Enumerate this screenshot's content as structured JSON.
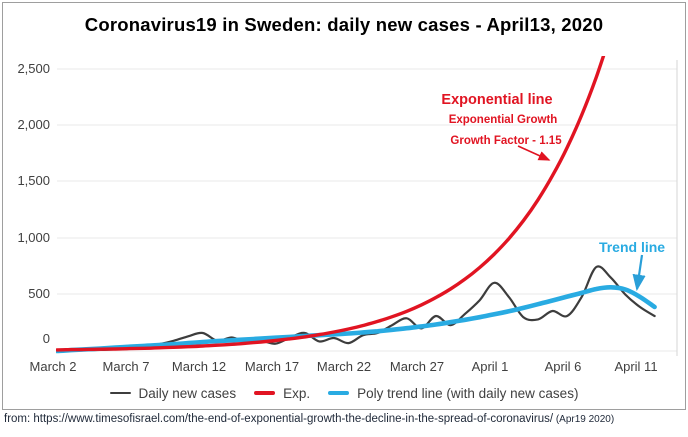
{
  "title": "Coronavirus19 in Sweden: daily new cases - April13, 2020",
  "annotations": {
    "exp_title": "Exponential line",
    "exp_sub1": "Exponential Growth",
    "exp_sub2": "Growth Factor - 1.15",
    "trend": "Trend line"
  },
  "source": {
    "text": "from: https://www.timesofisrael.com/the-end-of-exponential-growth-the-decline-in-the-spread-of-coronavirus/",
    "date": " (Apr19 2020)"
  },
  "colors": {
    "daily_line": "#3d3d3d",
    "exp_line": "#e11422",
    "trend_line": "#29abe2",
    "gridline": "#e8e8e8",
    "axis_text": "#404040",
    "box_border": "#9e9e9e"
  },
  "chart_data": {
    "type": "line",
    "title": "Coronavirus19 in Sweden: daily new cases - April13, 2020",
    "xlabel": "",
    "ylabel": "",
    "x_ticks": [
      "March 2",
      "March 7",
      "March 12",
      "March 17",
      "March 22",
      "March 27",
      "April 1",
      "April 6",
      "April 11"
    ],
    "x_unit": "days, one data point per day starting March 2 2020",
    "y_ticks": [
      "0",
      "500",
      "1,000",
      "1,500",
      "2,000",
      "2,500"
    ],
    "ylim": [
      0,
      2500
    ],
    "grid": "horizontal",
    "legend_position": "bottom",
    "exp_growth_factor_label": "1.15",
    "series": [
      {
        "name": "Daily new cases",
        "color": "#3d3d3d",
        "values": [
          0,
          3,
          6,
          10,
          15,
          25,
          40,
          60,
          90,
          130,
          160,
          90,
          120,
          75,
          90,
          65,
          120,
          160,
          85,
          115,
          70,
          140,
          160,
          230,
          290,
          200,
          310,
          230,
          330,
          450,
          605,
          480,
          300,
          280,
          355,
          310,
          480,
          745,
          650,
          500,
          390,
          310
        ]
      },
      {
        "name": "Exp.",
        "color": "#e11422",
        "values": [
          10,
          12,
          14,
          16,
          18,
          21,
          24,
          28,
          33,
          38,
          44,
          51,
          59,
          69,
          80,
          93,
          108,
          125,
          145,
          168,
          195,
          226,
          262,
          304,
          352,
          409,
          474,
          550,
          638,
          740,
          859,
          996,
          1155,
          1340,
          1555,
          1803,
          2092,
          2427,
          2815
        ]
      },
      {
        "name": "Poly trend line (with daily new cases)",
        "color": "#29abe2",
        "values": [
          0,
          8,
          15,
          22,
          30,
          38,
          45,
          52,
          60,
          70,
          80,
          88,
          95,
          103,
          110,
          118,
          125,
          133,
          140,
          148,
          155,
          165,
          175,
          188,
          202,
          218,
          235,
          255,
          277,
          300,
          325,
          352,
          382,
          415,
          448,
          482,
          515,
          550,
          565,
          545,
          480,
          390
        ]
      }
    ]
  }
}
